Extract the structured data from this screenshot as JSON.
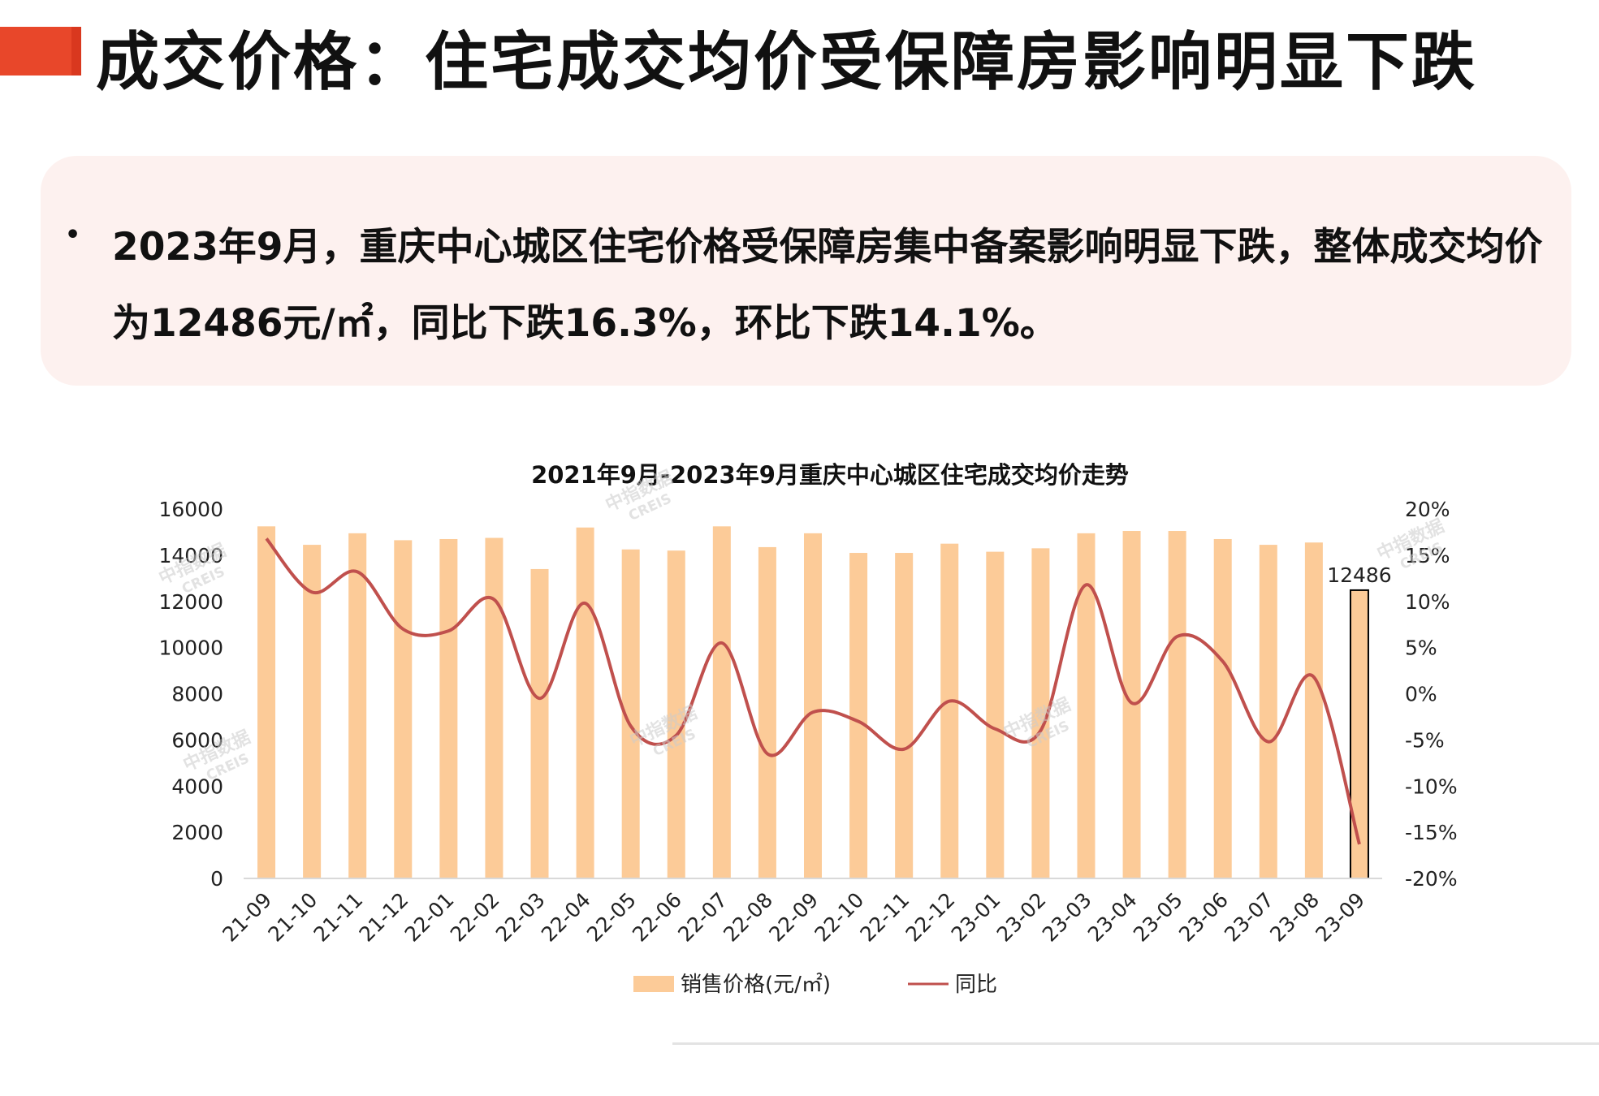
{
  "page": {
    "title": "成交价格：住宅成交均价受保障房影响明显下跌",
    "summary_bullet": "•",
    "summary_text": "2023年9月，重庆中心城区住宅价格受保障房集中备案影响明显下跌，整体成交均价为12486元/㎡，同比下跌16.3%，环比下跌14.1%。",
    "watermark_cn": "中指数据",
    "watermark_en": "CREIS"
  },
  "colors": {
    "title_accent": "#e8472a",
    "bar": "#fccb98",
    "highlight_bar_stroke": "#000000",
    "line": "#c0504d",
    "summary_bg": "#fdf1ef"
  },
  "chart_data": {
    "type": "bar",
    "title": "2021年9月-2023年9月重庆中心城区住宅成交均价走势",
    "categories": [
      "21-09",
      "21-10",
      "21-11",
      "21-12",
      "22-01",
      "22-02",
      "22-03",
      "22-04",
      "22-05",
      "22-06",
      "22-07",
      "22-08",
      "22-09",
      "22-10",
      "22-11",
      "22-12",
      "23-01",
      "23-02",
      "23-03",
      "23-04",
      "23-05",
      "23-06",
      "23-07",
      "23-08",
      "23-09"
    ],
    "series": [
      {
        "name": "销售价格(元/㎡)",
        "type": "bar",
        "axis": "left",
        "values": [
          15250,
          14450,
          14950,
          14650,
          14700,
          14750,
          13400,
          15200,
          14250,
          14200,
          15250,
          14350,
          14950,
          14100,
          14100,
          14500,
          14150,
          14300,
          14950,
          15050,
          15050,
          14700,
          14450,
          14550,
          12486
        ]
      },
      {
        "name": "同比",
        "type": "line",
        "axis": "right",
        "values": [
          16.8,
          11.0,
          13.2,
          7.0,
          6.8,
          10.2,
          -0.5,
          9.8,
          -3.5,
          -4.5,
          5.5,
          -6.5,
          -2.0,
          -3.0,
          -6.0,
          -0.8,
          -3.8,
          -4.0,
          11.8,
          -1.0,
          6.2,
          3.5,
          -5.2,
          1.8,
          -16.3
        ]
      }
    ],
    "y_left": {
      "min": 0,
      "max": 16000,
      "ticks": [
        "0",
        "2000",
        "4000",
        "6000",
        "8000",
        "10000",
        "12000",
        "14000",
        "16000"
      ]
    },
    "y_right": {
      "min": -20,
      "max": 20,
      "ticks": [
        "-20%",
        "-15%",
        "-10%",
        "-5%",
        "0%",
        "5%",
        "10%",
        "15%",
        "20%"
      ]
    },
    "data_label": {
      "index": 24,
      "text": "12486"
    },
    "legend_position": "bottom",
    "grid": false
  }
}
